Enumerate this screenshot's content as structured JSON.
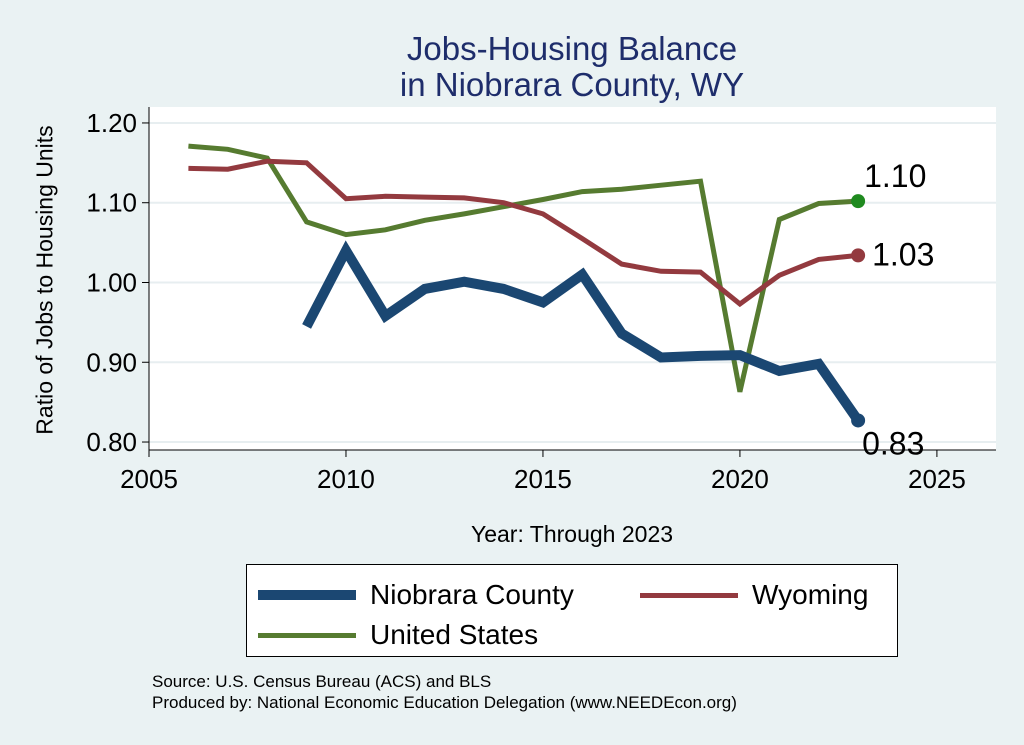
{
  "title_line1": "Jobs-Housing Balance",
  "title_line2": "in Niobrara County, WY",
  "source_line1": "Source: U.S. Census Bureau (ACS) and BLS",
  "source_line2": "Produced by: National Economic Education Delegation (www.NEEDEcon.org)",
  "chart_data": {
    "type": "line",
    "title": "Jobs-Housing Balance in Niobrara County, WY",
    "xlabel": "Year: Through 2023",
    "ylabel": "Ratio of Jobs to Housing Units",
    "xlim": [
      2005,
      2026.5
    ],
    "ylim": [
      0.79,
      1.22
    ],
    "xticks": [
      2005,
      2010,
      2015,
      2020,
      2025
    ],
    "yticks": [
      0.8,
      0.9,
      1.0,
      1.1,
      1.2
    ],
    "ytick_labels": [
      "0.80",
      "0.90",
      "1.00",
      "1.10",
      "1.20"
    ],
    "grid": "horizontal",
    "legend_position": "bottom",
    "series": [
      {
        "name": "Niobrara County",
        "color": "#1b4772",
        "x": [
          2009,
          2010,
          2011,
          2012,
          2013,
          2014,
          2015,
          2016,
          2017,
          2018,
          2019,
          2020,
          2021,
          2022,
          2023
        ],
        "values": [
          0.945,
          1.04,
          0.958,
          0.992,
          1.001,
          0.992,
          0.975,
          1.01,
          0.936,
          0.906,
          0.908,
          0.909,
          0.889,
          0.898,
          0.827
        ],
        "end_label": "0.83"
      },
      {
        "name": "Wyoming",
        "color": "#933a3f",
        "x": [
          2006,
          2007,
          2008,
          2009,
          2010,
          2011,
          2012,
          2013,
          2014,
          2015,
          2016,
          2017,
          2018,
          2019,
          2020,
          2021,
          2022,
          2023
        ],
        "values": [
          1.143,
          1.142,
          1.152,
          1.15,
          1.105,
          1.108,
          1.107,
          1.106,
          1.1,
          1.086,
          1.055,
          1.023,
          1.014,
          1.013,
          0.973,
          1.009,
          1.029,
          1.034
        ],
        "end_label": "1.03"
      },
      {
        "name": "United States",
        "color": "#567b30",
        "marker_color": "#1f8a1f",
        "x": [
          2006,
          2007,
          2008,
          2009,
          2010,
          2011,
          2012,
          2013,
          2014,
          2015,
          2016,
          2017,
          2018,
          2019,
          2020,
          2021,
          2022,
          2023
        ],
        "values": [
          1.171,
          1.167,
          1.156,
          1.076,
          1.06,
          1.066,
          1.078,
          1.086,
          1.095,
          1.104,
          1.114,
          1.117,
          1.122,
          1.127,
          0.863,
          1.079,
          1.099,
          1.102
        ],
        "end_label": "1.10"
      }
    ]
  }
}
